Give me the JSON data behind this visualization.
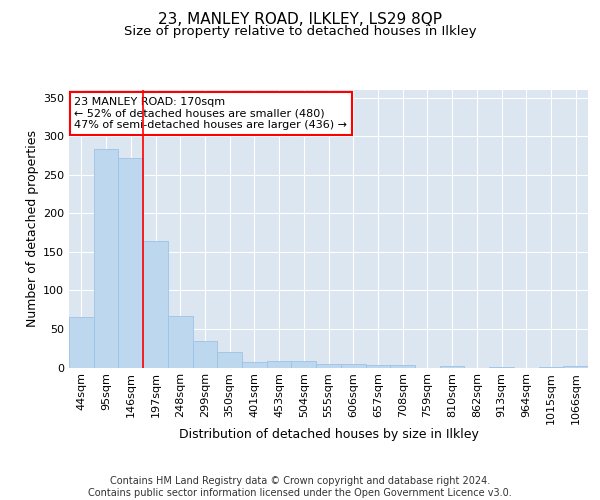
{
  "title1": "23, MANLEY ROAD, ILKLEY, LS29 8QP",
  "title2": "Size of property relative to detached houses in Ilkley",
  "xlabel": "Distribution of detached houses by size in Ilkley",
  "ylabel": "Number of detached properties",
  "categories": [
    "44sqm",
    "95sqm",
    "146sqm",
    "197sqm",
    "248sqm",
    "299sqm",
    "350sqm",
    "401sqm",
    "453sqm",
    "504sqm",
    "555sqm",
    "606sqm",
    "657sqm",
    "708sqm",
    "759sqm",
    "810sqm",
    "862sqm",
    "913sqm",
    "964sqm",
    "1015sqm",
    "1066sqm"
  ],
  "values": [
    65,
    284,
    272,
    164,
    67,
    35,
    20,
    7,
    9,
    9,
    5,
    4,
    3,
    3,
    0,
    2,
    0,
    1,
    0,
    1,
    2
  ],
  "bar_color": "#bdd7ee",
  "bar_edge_color": "#9dc3e6",
  "red_line_x": 2.5,
  "annotation_text": "23 MANLEY ROAD: 170sqm\n← 52% of detached houses are smaller (480)\n47% of semi-detached houses are larger (436) →",
  "annotation_box_color": "white",
  "annotation_box_edge_color": "red",
  "ylim": [
    0,
    360
  ],
  "yticks": [
    0,
    50,
    100,
    150,
    200,
    250,
    300,
    350
  ],
  "footer": "Contains HM Land Registry data © Crown copyright and database right 2024.\nContains public sector information licensed under the Open Government Licence v3.0.",
  "background_color": "#dce6f1",
  "grid_color": "#ffffff",
  "title1_fontsize": 11,
  "title2_fontsize": 9.5,
  "xlabel_fontsize": 9,
  "ylabel_fontsize": 9,
  "footer_fontsize": 7,
  "tick_fontsize": 8,
  "ann_fontsize": 8
}
